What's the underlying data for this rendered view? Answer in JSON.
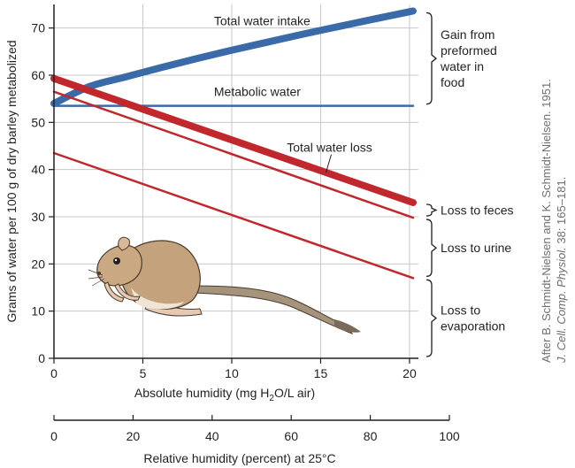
{
  "chart_data": {
    "type": "line",
    "title": "",
    "ylabel": "Grams of water per 100 g of dry barley metabolized",
    "xlabel": {
      "prefix": "Absolute humidity (mg H",
      "sub": "2",
      "suffix": "O/L air)"
    },
    "x2label": "Relative humidity (percent) at 25°C",
    "xlim": [
      0,
      20.5
    ],
    "ylim": [
      0,
      75
    ],
    "x2lim": [
      0,
      100
    ],
    "xticks": [
      0,
      5,
      10,
      15,
      20
    ],
    "yticks": [
      0,
      10,
      20,
      30,
      40,
      50,
      60,
      70
    ],
    "x2ticks": [
      0,
      20,
      40,
      60,
      80,
      100
    ],
    "grid": true,
    "series": [
      {
        "name": "Total water intake",
        "color": "#3a6aa8",
        "weight": "heavy",
        "curve": true,
        "x": [
          0,
          2,
          4,
          6,
          8,
          10,
          12,
          14,
          16,
          18,
          20.2
        ],
        "y": [
          54,
          57.6,
          59.6,
          61.6,
          63.5,
          65.3,
          67,
          68.7,
          70.3,
          71.9,
          73.6
        ]
      },
      {
        "name": "Metabolic water",
        "color": "#3a6aa8",
        "weight": "thin",
        "curve": false,
        "x": [
          0,
          20.2
        ],
        "y": [
          53.5,
          53.5
        ]
      },
      {
        "name": "Total water loss",
        "color": "#c0282d",
        "weight": "heavy",
        "curve": false,
        "x": [
          0,
          20.2
        ],
        "y": [
          59.3,
          33
        ]
      },
      {
        "name": "",
        "color": "#c0282d",
        "weight": "thin",
        "curve": false,
        "x": [
          0,
          20.2
        ],
        "y": [
          56.5,
          29.8
        ]
      },
      {
        "name": "",
        "color": "#c0282d",
        "weight": "thin",
        "curve": false,
        "x": [
          0,
          20.2
        ],
        "y": [
          43.5,
          17
        ]
      }
    ],
    "annotations": [
      {
        "text_lines": [
          "Gain from",
          "preformed",
          "water in",
          "food"
        ],
        "y_range": [
          53.5,
          73.6
        ]
      },
      {
        "text_lines": [
          "Loss to feces"
        ],
        "y_range": [
          29.8,
          33
        ]
      },
      {
        "text_lines": [
          "Loss to urine"
        ],
        "y_range": [
          17,
          29.8
        ]
      },
      {
        "text_lines": [
          "Loss to",
          "evaporation"
        ],
        "y_range": [
          0,
          17
        ]
      }
    ]
  },
  "credit": {
    "line1": "After B. Schmidt-Nielsen and K. Schmidt-Nielsen. 1951.",
    "line2_journal": "J. Cell. Comp. Physiol.",
    "line2_rest": " 38: 165–181."
  },
  "colors": {
    "blue": "#3a6aa8",
    "red": "#c0282d",
    "grid": "#c7c8ca",
    "plot_bg": "#ffffff"
  },
  "illustration": {
    "icon": "kangaroo-rat-icon"
  }
}
